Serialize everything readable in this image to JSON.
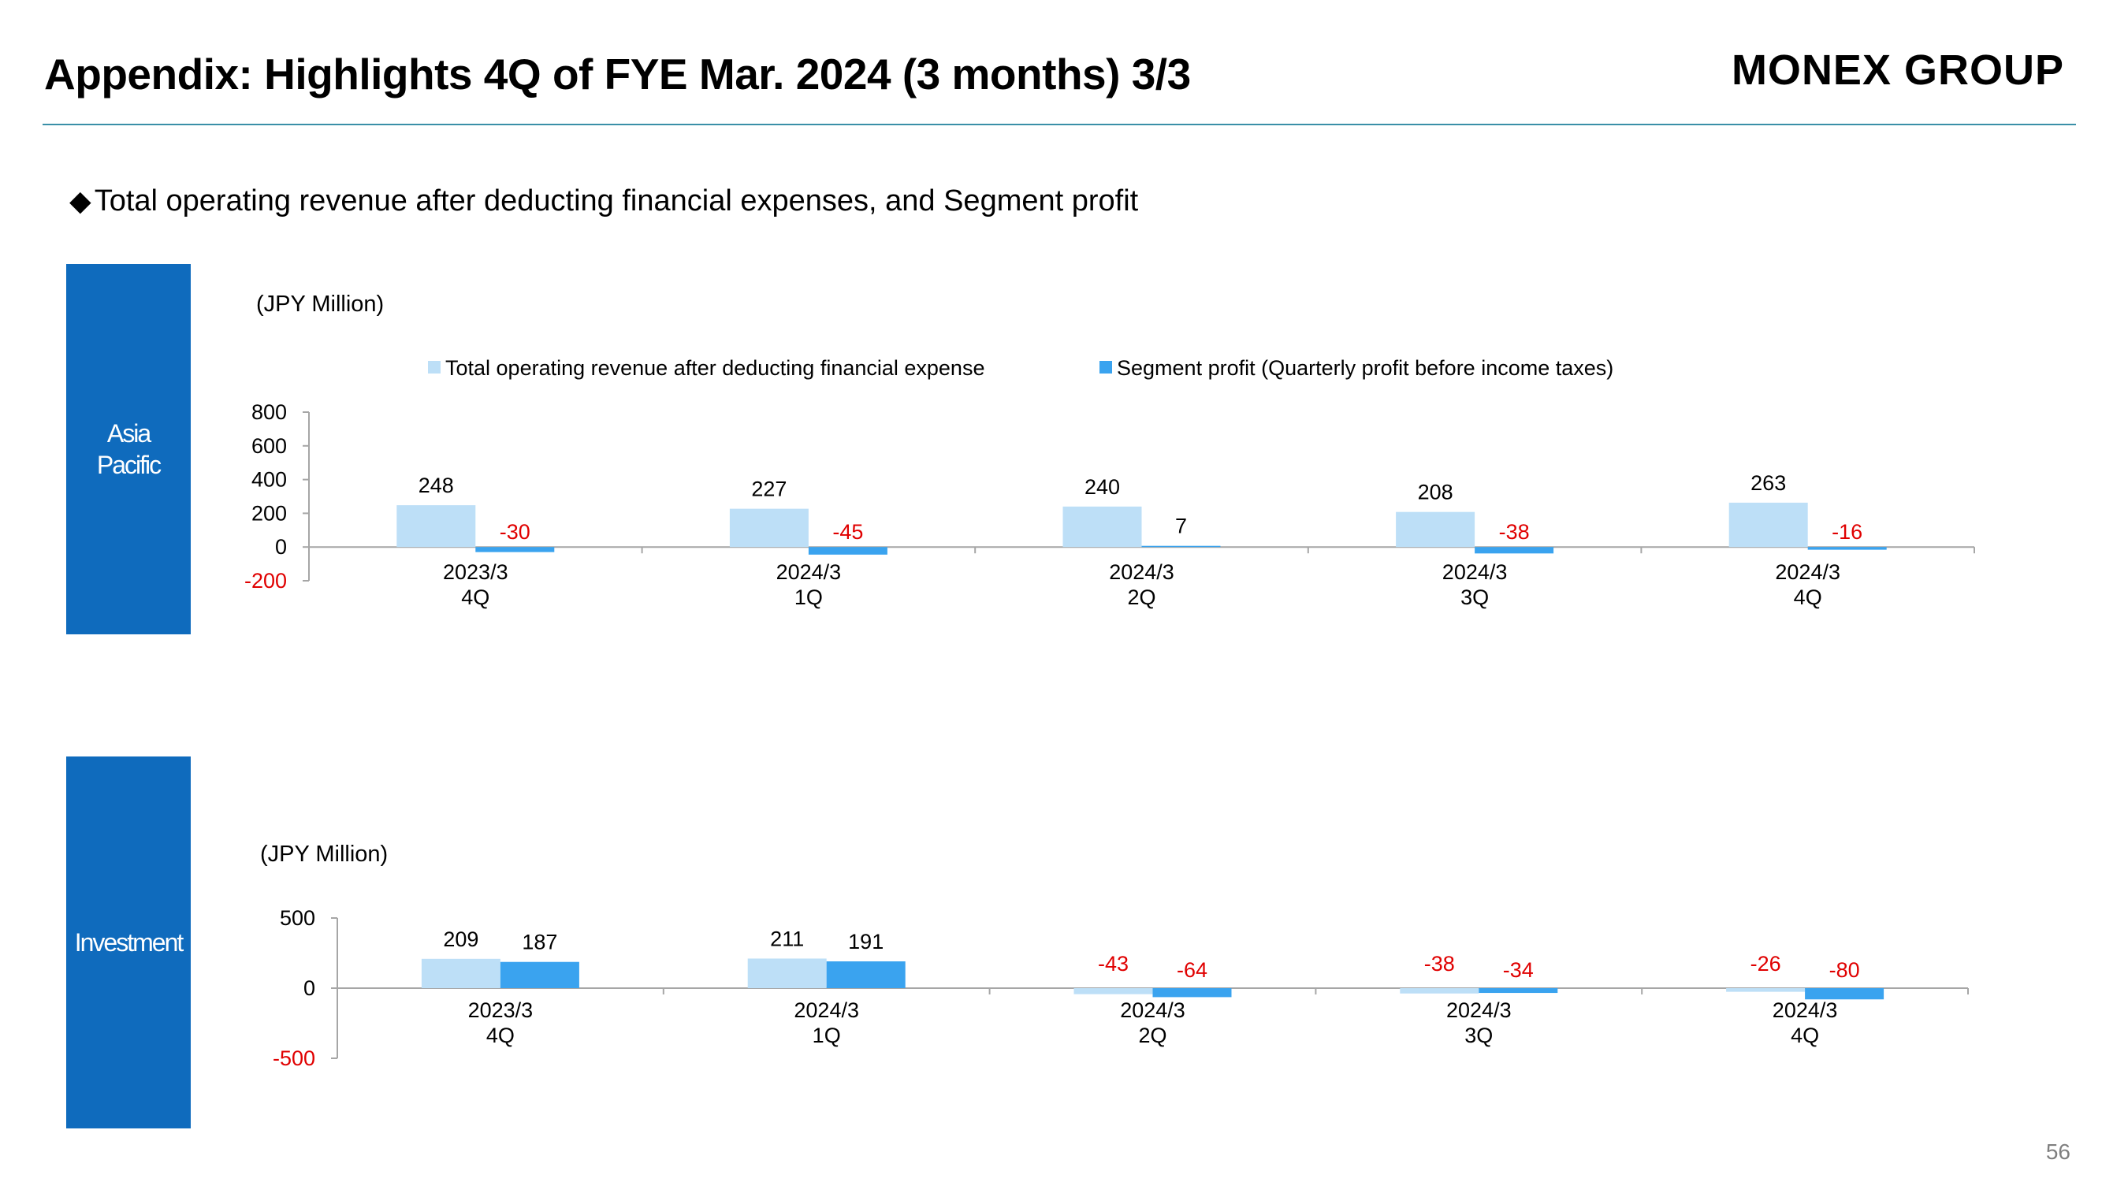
{
  "header": {
    "title": "Appendix: Highlights 4Q of FYE Mar. 2024 (3 months) 3/3",
    "logo": "MONEX GROUP",
    "subtitle": "Total operating revenue after deducting financial expenses, and Segment profit",
    "bullet_icon": "diamond-icon"
  },
  "page_number": "56",
  "colors": {
    "revenue": "#bddff7",
    "profit": "#3aa3ef",
    "side_box": "#0f6bbd",
    "negative_text": "#e00000",
    "rule": "#3a8fa8"
  },
  "chart_data": [
    {
      "type": "bar",
      "segment_label": "Asia\nPacific",
      "unit_label": "(JPY Million)",
      "categories": [
        "2023/3\n4Q",
        "2024/3\n1Q",
        "2024/3\n2Q",
        "2024/3\n3Q",
        "2024/3\n4Q"
      ],
      "series": [
        {
          "name": "Total operating revenue after deducting financial expense",
          "values": [
            248,
            227,
            240,
            208,
            263
          ]
        },
        {
          "name": "Segment profit (Quarterly profit before income taxes)",
          "values": [
            -30,
            -45,
            7,
            -38,
            -16
          ]
        }
      ],
      "ylim": [
        -200,
        800
      ],
      "yticks": [
        "800",
        "600",
        "400",
        "200",
        "0",
        "-200"
      ],
      "yticks_values": [
        800,
        600,
        400,
        200,
        0,
        -200
      ],
      "legend": "top",
      "grid": false
    },
    {
      "type": "bar",
      "segment_label": "Investment",
      "unit_label": "(JPY Million)",
      "categories": [
        "2023/3\n4Q",
        "2024/3\n1Q",
        "2024/3\n2Q",
        "2024/3\n3Q",
        "2024/3\n4Q"
      ],
      "series": [
        {
          "name": "Total operating revenue after deducting financial expense",
          "values": [
            209,
            211,
            -43,
            -38,
            -26
          ]
        },
        {
          "name": "Segment profit (Quarterly profit before income taxes)",
          "values": [
            187,
            191,
            -64,
            -34,
            -80
          ]
        }
      ],
      "ylim": [
        -500,
        500
      ],
      "yticks": [
        "500",
        "0",
        "-500"
      ],
      "yticks_values": [
        500,
        0,
        -500
      ],
      "legend": "none",
      "grid": false
    }
  ]
}
